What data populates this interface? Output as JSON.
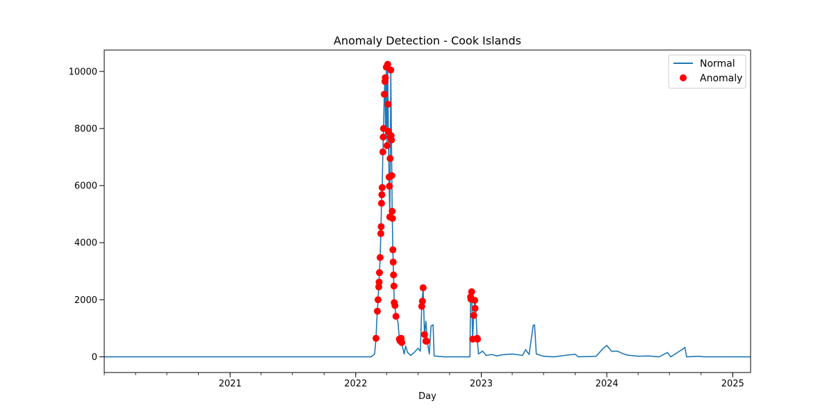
{
  "chart_data": {
    "type": "line",
    "title": "Anomaly Detection - Cook Islands",
    "xlabel": "Day",
    "ylabel": "",
    "xlim": [
      "2020-01-01",
      "2025-02-22"
    ],
    "ylim": [
      -550,
      10750
    ],
    "x_ticks": [
      {
        "date": "2021-01-01",
        "label": "2021"
      },
      {
        "date": "2022-01-01",
        "label": "2022"
      },
      {
        "date": "2023-01-01",
        "label": "2023"
      },
      {
        "date": "2024-01-01",
        "label": "2024"
      },
      {
        "date": "2025-01-01",
        "label": "2025"
      }
    ],
    "y_ticks": [
      0,
      2000,
      4000,
      6000,
      8000,
      10000
    ],
    "grid": false,
    "legend": {
      "placement": "top-right",
      "entries": [
        "Normal",
        "Anomaly"
      ]
    },
    "colors": {
      "line": "#1f77b4",
      "anomaly": "#ff0000"
    },
    "series": [
      {
        "name": "Normal",
        "kind": "line",
        "points": [
          [
            "2020-01-01",
            0
          ],
          [
            "2022-02-15",
            0
          ],
          [
            "2022-02-20",
            50
          ],
          [
            "2022-02-25",
            100
          ],
          [
            "2022-03-01",
            650
          ],
          [
            "2022-03-03",
            1200
          ],
          [
            "2022-03-05",
            1600
          ],
          [
            "2022-03-07",
            2000
          ],
          [
            "2022-03-09",
            2450
          ],
          [
            "2022-03-11",
            2950
          ],
          [
            "2022-03-13",
            3480
          ],
          [
            "2022-03-15",
            4320
          ],
          [
            "2022-03-17",
            5380
          ],
          [
            "2022-03-19",
            5930
          ],
          [
            "2022-03-21",
            7180
          ],
          [
            "2022-03-23",
            8000
          ],
          [
            "2022-03-25",
            9200
          ],
          [
            "2022-03-27",
            9650
          ],
          [
            "2022-03-29",
            7650
          ],
          [
            "2022-03-31",
            10150
          ],
          [
            "2022-04-02",
            7400
          ],
          [
            "2022-04-04",
            10250
          ],
          [
            "2022-04-06",
            7900
          ],
          [
            "2022-04-08",
            6300
          ],
          [
            "2022-04-10",
            4900
          ],
          [
            "2022-04-12",
            7700
          ],
          [
            "2022-04-13",
            10050
          ],
          [
            "2022-04-15",
            7600
          ],
          [
            "2022-04-17",
            5100
          ],
          [
            "2022-04-19",
            3750
          ],
          [
            "2022-04-21",
            2870
          ],
          [
            "2022-04-23",
            1900
          ],
          [
            "2022-04-25",
            1800
          ],
          [
            "2022-04-28",
            1420
          ],
          [
            "2022-05-01",
            1350
          ],
          [
            "2022-05-04",
            1200
          ],
          [
            "2022-05-08",
            600
          ],
          [
            "2022-05-12",
            550
          ],
          [
            "2022-05-18",
            300
          ],
          [
            "2022-05-22",
            100
          ],
          [
            "2022-05-26",
            380
          ],
          [
            "2022-06-01",
            150
          ],
          [
            "2022-06-10",
            50
          ],
          [
            "2022-06-20",
            150
          ],
          [
            "2022-07-01",
            300
          ],
          [
            "2022-07-08",
            200
          ],
          [
            "2022-07-12",
            1770
          ],
          [
            "2022-07-16",
            2420
          ],
          [
            "2022-07-20",
            780
          ],
          [
            "2022-07-24",
            1250
          ],
          [
            "2022-07-28",
            550
          ],
          [
            "2022-08-03",
            100
          ],
          [
            "2022-08-08",
            1080
          ],
          [
            "2022-08-14",
            1120
          ],
          [
            "2022-08-17",
            30
          ],
          [
            "2022-09-15",
            0
          ],
          [
            "2022-11-29",
            0
          ],
          [
            "2022-12-01",
            2100
          ],
          [
            "2022-12-04",
            2280
          ],
          [
            "2022-12-07",
            620
          ],
          [
            "2022-12-10",
            1450
          ],
          [
            "2022-12-13",
            1980
          ],
          [
            "2022-12-16",
            1700
          ],
          [
            "2022-12-20",
            650
          ],
          [
            "2022-12-24",
            100
          ],
          [
            "2023-01-05",
            200
          ],
          [
            "2023-01-15",
            50
          ],
          [
            "2023-02-01",
            80
          ],
          [
            "2023-02-15",
            30
          ],
          [
            "2023-03-01",
            70
          ],
          [
            "2023-04-01",
            100
          ],
          [
            "2023-05-01",
            50
          ],
          [
            "2023-05-10",
            250
          ],
          [
            "2023-05-20",
            80
          ],
          [
            "2023-06-01",
            1100
          ],
          [
            "2023-06-05",
            1120
          ],
          [
            "2023-06-10",
            100
          ],
          [
            "2023-07-01",
            20
          ],
          [
            "2023-08-01",
            0
          ],
          [
            "2023-09-01",
            50
          ],
          [
            "2023-10-01",
            90
          ],
          [
            "2023-10-10",
            0
          ],
          [
            "2023-12-01",
            20
          ],
          [
            "2023-12-20",
            280
          ],
          [
            "2024-01-01",
            400
          ],
          [
            "2024-01-15",
            190
          ],
          [
            "2024-02-01",
            200
          ],
          [
            "2024-02-15",
            120
          ],
          [
            "2024-03-01",
            60
          ],
          [
            "2024-04-01",
            20
          ],
          [
            "2024-05-01",
            30
          ],
          [
            "2024-06-01",
            0
          ],
          [
            "2024-06-25",
            150
          ],
          [
            "2024-07-05",
            0
          ],
          [
            "2024-08-10",
            280
          ],
          [
            "2024-08-15",
            330
          ],
          [
            "2024-08-20",
            0
          ],
          [
            "2024-09-25",
            20
          ],
          [
            "2024-10-10",
            0
          ],
          [
            "2025-02-22",
            0
          ]
        ]
      },
      {
        "name": "Anomaly",
        "kind": "scatter",
        "points": [
          [
            "2022-03-01",
            650
          ],
          [
            "2022-03-05",
            1600
          ],
          [
            "2022-03-07",
            2000
          ],
          [
            "2022-03-09",
            2450
          ],
          [
            "2022-03-10",
            2620
          ],
          [
            "2022-03-11",
            2950
          ],
          [
            "2022-03-13",
            3480
          ],
          [
            "2022-03-15",
            4320
          ],
          [
            "2022-03-16",
            4560
          ],
          [
            "2022-03-17",
            5380
          ],
          [
            "2022-03-18",
            5680
          ],
          [
            "2022-03-19",
            5930
          ],
          [
            "2022-03-21",
            7180
          ],
          [
            "2022-03-22",
            7700
          ],
          [
            "2022-03-23",
            8000
          ],
          [
            "2022-03-25",
            9200
          ],
          [
            "2022-03-27",
            9650
          ],
          [
            "2022-03-28",
            9780
          ],
          [
            "2022-03-31",
            10150
          ],
          [
            "2022-04-02",
            7400
          ],
          [
            "2022-04-04",
            10250
          ],
          [
            "2022-04-05",
            8850
          ],
          [
            "2022-04-06",
            7900
          ],
          [
            "2022-04-08",
            6300
          ],
          [
            "2022-04-09",
            5980
          ],
          [
            "2022-04-10",
            4900
          ],
          [
            "2022-04-11",
            6950
          ],
          [
            "2022-04-12",
            7700
          ],
          [
            "2022-04-13",
            10050
          ],
          [
            "2022-04-14",
            7750
          ],
          [
            "2022-04-15",
            7600
          ],
          [
            "2022-04-16",
            6350
          ],
          [
            "2022-04-17",
            5100
          ],
          [
            "2022-04-18",
            4850
          ],
          [
            "2022-04-19",
            3750
          ],
          [
            "2022-04-20",
            3320
          ],
          [
            "2022-04-21",
            2870
          ],
          [
            "2022-04-22",
            2480
          ],
          [
            "2022-04-23",
            1900
          ],
          [
            "2022-04-25",
            1800
          ],
          [
            "2022-04-28",
            1420
          ],
          [
            "2022-05-08",
            620
          ],
          [
            "2022-05-10",
            560
          ],
          [
            "2022-05-13",
            650
          ],
          [
            "2022-05-15",
            500
          ],
          [
            "2022-07-12",
            1770
          ],
          [
            "2022-07-14",
            1950
          ],
          [
            "2022-07-16",
            2420
          ],
          [
            "2022-07-20",
            780
          ],
          [
            "2022-07-24",
            550
          ],
          [
            "2022-07-26",
            550
          ],
          [
            "2022-12-01",
            2100
          ],
          [
            "2022-12-02",
            2020
          ],
          [
            "2022-12-04",
            2280
          ],
          [
            "2022-12-07",
            620
          ],
          [
            "2022-12-10",
            1450
          ],
          [
            "2022-12-13",
            1980
          ],
          [
            "2022-12-14",
            1700
          ],
          [
            "2022-12-20",
            650
          ],
          [
            "2022-12-21",
            620
          ]
        ]
      }
    ]
  }
}
